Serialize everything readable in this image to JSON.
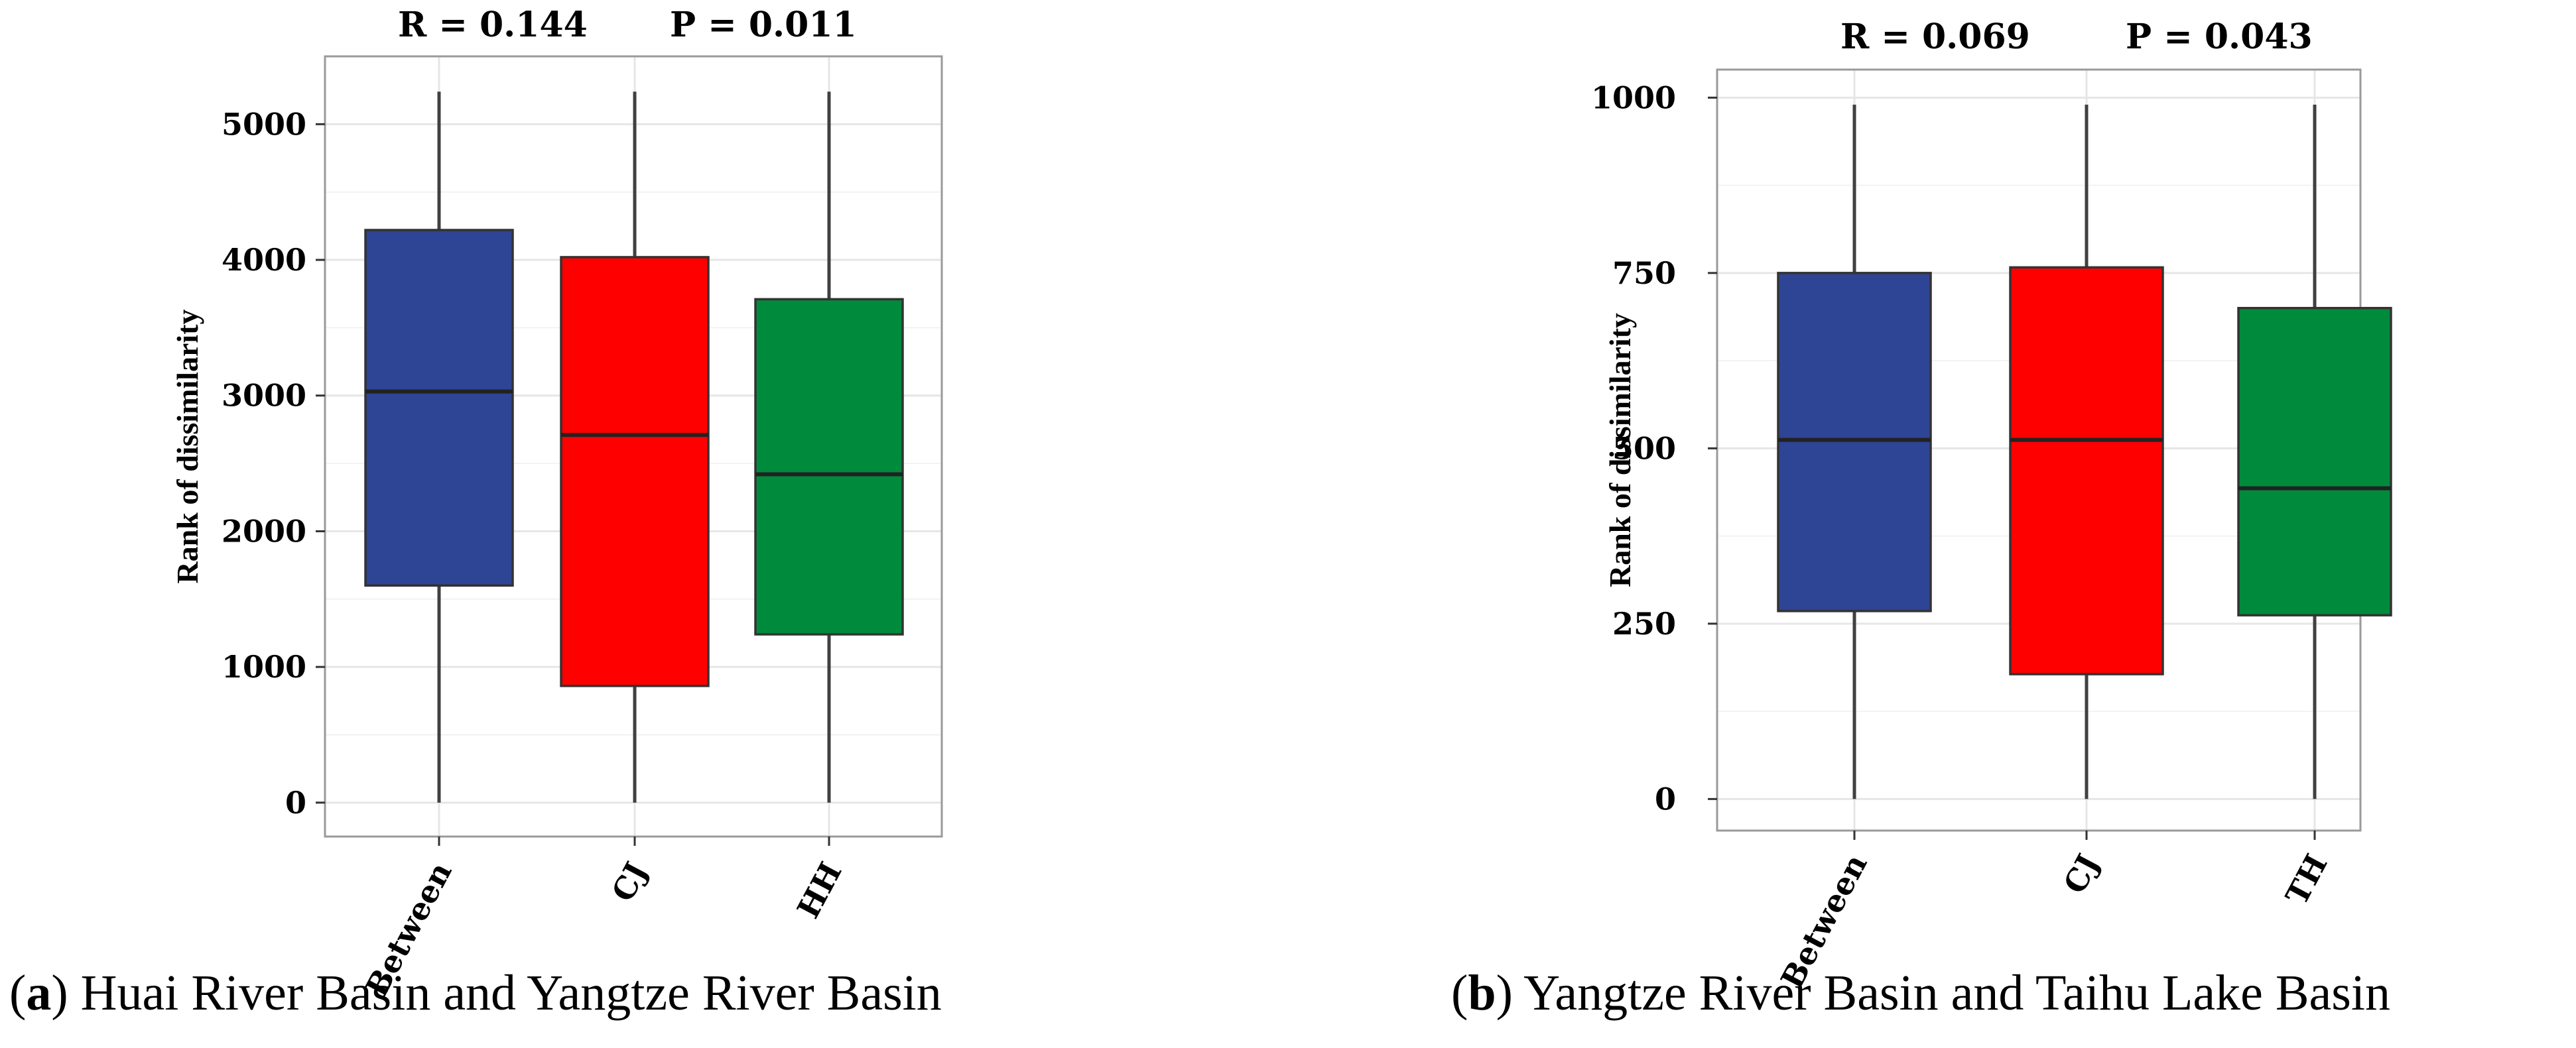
{
  "chart_data": [
    {
      "type": "boxplot",
      "stats": {
        "r_label": "R =",
        "r_value": "0.144",
        "p_label": "P =",
        "p_value": "0.011"
      },
      "ylabel": "Rank of dissimilarity",
      "ylim": [
        -250,
        5500
      ],
      "yticks": [
        0,
        1000,
        2000,
        3000,
        4000,
        5000
      ],
      "categories": [
        "Between",
        "CJ",
        "HH"
      ],
      "boxes": [
        {
          "name": "Between",
          "min": 0,
          "q1": 1600,
          "median": 3030,
          "q3": 4220,
          "max": 5240,
          "color": "#2E4494"
        },
        {
          "name": "CJ",
          "min": 0,
          "q1": 860,
          "median": 2710,
          "q3": 4020,
          "max": 5240,
          "color": "#FF0000"
        },
        {
          "name": "HH",
          "min": 0,
          "q1": 1240,
          "median": 2420,
          "q3": 3710,
          "max": 5240,
          "color": "#008B3C"
        }
      ],
      "grid": true,
      "caption": {
        "letter": "a",
        "text": " Huai River Basin and Yangtze River Basin"
      }
    },
    {
      "type": "boxplot",
      "stats": {
        "r_label": "R =",
        "r_value": "0.069",
        "p_label": "P =",
        "p_value": "0.043"
      },
      "ylabel": "Rank of dissimilarity",
      "ylim": [
        -45,
        1040
      ],
      "yticks": [
        0,
        250,
        500,
        750,
        1000
      ],
      "categories": [
        "Between",
        "CJ",
        "TH"
      ],
      "boxes": [
        {
          "name": "Between",
          "min": 0,
          "q1": 268,
          "median": 512,
          "q3": 750,
          "max": 990,
          "color": "#2E4494"
        },
        {
          "name": "CJ",
          "min": 0,
          "q1": 178,
          "median": 512,
          "q3": 758,
          "max": 990,
          "color": "#FF0000"
        },
        {
          "name": "TH",
          "min": 0,
          "q1": 262,
          "median": 443,
          "q3": 700,
          "max": 990,
          "color": "#008B3C"
        }
      ],
      "grid": true,
      "caption": {
        "letter": "b",
        "text": " Yangtze River Basin and Taihu Lake Basin"
      }
    }
  ]
}
